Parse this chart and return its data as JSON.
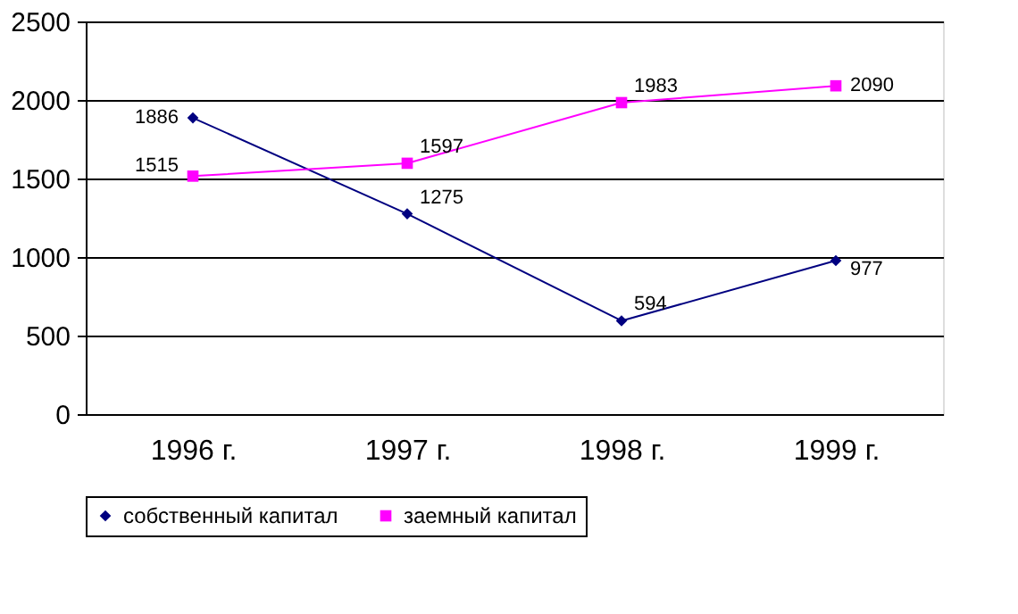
{
  "chart_data": {
    "type": "line",
    "categories": [
      "1996 г.",
      "1997 г.",
      "1998 г.",
      "1999 г."
    ],
    "series": [
      {
        "name": "собственный капитал",
        "color": "#000080",
        "marker": "diamond",
        "values": [
          1886,
          1275,
          594,
          977
        ]
      },
      {
        "name": "заемный капитал",
        "color": "#ff00ff",
        "marker": "square",
        "values": [
          1515,
          1597,
          1983,
          2090
        ]
      }
    ],
    "ylim": [
      0,
      2500
    ],
    "yticks": [
      0,
      500,
      1000,
      1500,
      2000,
      2500
    ],
    "grid": "y",
    "legend": "bottom",
    "data_labels": true,
    "line_style": "solid"
  }
}
